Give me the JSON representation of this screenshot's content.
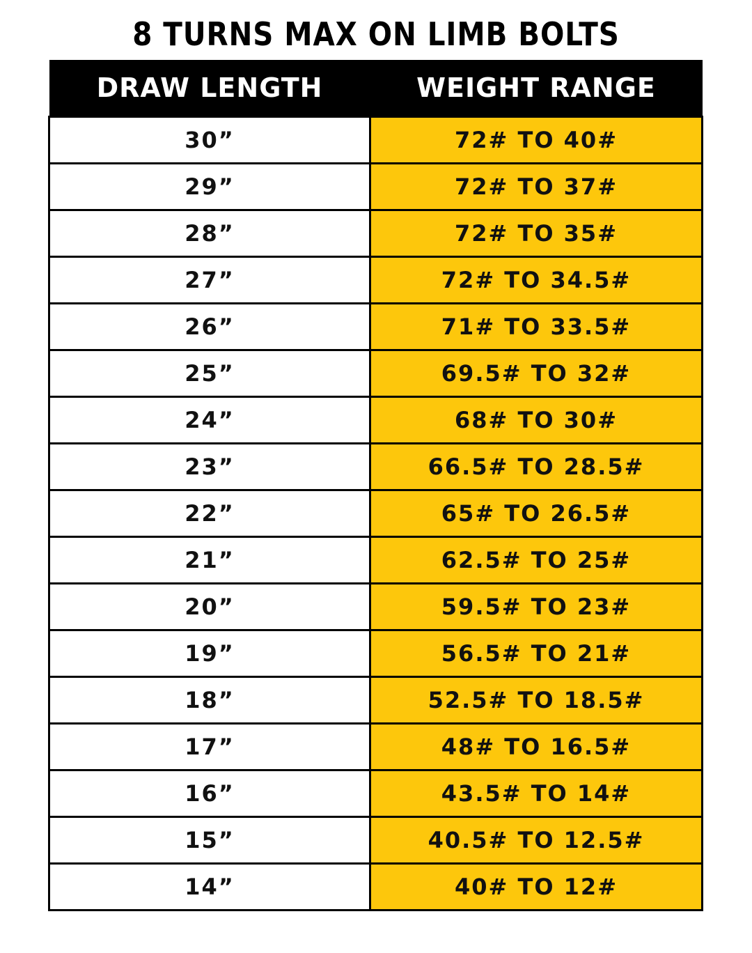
{
  "title": "8 TURNS MAX ON LIMB BOLTS",
  "colors": {
    "header_bg": "#000000",
    "weight_cell_bg": "#FDC70C"
  },
  "table": {
    "headers": [
      "DRAW LENGTH",
      "WEIGHT RANGE"
    ],
    "rows": [
      {
        "draw_length": "30”",
        "weight_range": "72# TO 40#"
      },
      {
        "draw_length": "29”",
        "weight_range": "72# TO 37#"
      },
      {
        "draw_length": "28”",
        "weight_range": "72# TO 35#"
      },
      {
        "draw_length": "27”",
        "weight_range": "72# TO 34.5#"
      },
      {
        "draw_length": "26”",
        "weight_range": "71# TO 33.5#"
      },
      {
        "draw_length": "25”",
        "weight_range": "69.5# TO 32#"
      },
      {
        "draw_length": "24”",
        "weight_range": "68# TO 30#"
      },
      {
        "draw_length": "23”",
        "weight_range": "66.5# TO 28.5#"
      },
      {
        "draw_length": "22”",
        "weight_range": "65# TO 26.5#"
      },
      {
        "draw_length": "21”",
        "weight_range": "62.5# TO 25#"
      },
      {
        "draw_length": "20”",
        "weight_range": "59.5# TO 23#"
      },
      {
        "draw_length": "19”",
        "weight_range": "56.5# TO 21#"
      },
      {
        "draw_length": "18”",
        "weight_range": "52.5# TO 18.5#"
      },
      {
        "draw_length": "17”",
        "weight_range": "48# TO 16.5#"
      },
      {
        "draw_length": "16”",
        "weight_range": "43.5# TO 14#"
      },
      {
        "draw_length": "15”",
        "weight_range": "40.5# TO 12.5#"
      },
      {
        "draw_length": "14”",
        "weight_range": "40# TO 12#"
      }
    ]
  }
}
